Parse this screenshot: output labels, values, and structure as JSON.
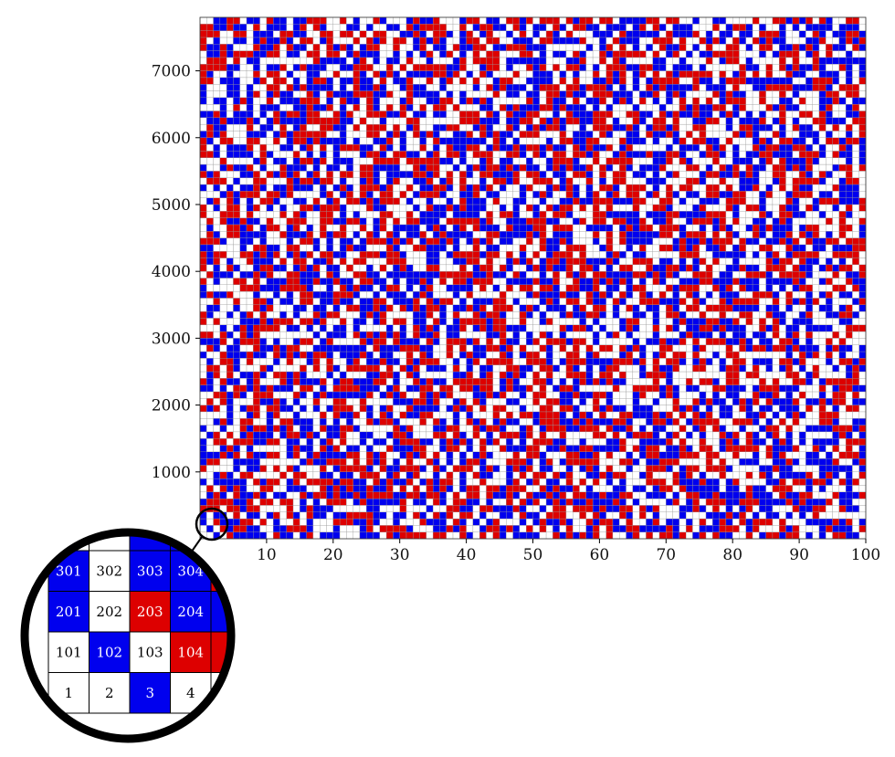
{
  "chart_data": {
    "type": "heatmap",
    "title": "",
    "xlabel": "",
    "ylabel": "",
    "columns": 100,
    "rows": 78,
    "cell_value_step": 100,
    "xlim": [
      0,
      100
    ],
    "ylim": [
      0,
      7800
    ],
    "x_ticks": [
      10,
      20,
      30,
      40,
      50,
      60,
      70,
      80,
      90,
      100
    ],
    "x_tick_labels": [
      "10",
      "20",
      "30",
      "40",
      "50",
      "60",
      "70",
      "80",
      "90",
      "100"
    ],
    "y_ticks": [
      1000,
      2000,
      3000,
      4000,
      5000,
      6000,
      7000
    ],
    "y_tick_labels": [
      "1000",
      "2000",
      "3000",
      "4000",
      "5000",
      "6000",
      "7000"
    ],
    "categories": [
      "white",
      "blue",
      "red"
    ],
    "colors": {
      "white": "#ffffff",
      "blue": "#0000ee",
      "red": "#dd0000",
      "grid": "#999999"
    },
    "grid": true,
    "legend": "none",
    "inset": {
      "description_position": "bottom-left magnified view of corner cells",
      "rows": [
        {
          "cells": [
            {
              "label": "301",
              "color": "blue"
            },
            {
              "label": "302",
              "color": "white"
            },
            {
              "label": "303",
              "color": "blue"
            },
            {
              "label": "304",
              "color": "blue"
            }
          ]
        },
        {
          "cells": [
            {
              "label": "201",
              "color": "blue"
            },
            {
              "label": "202",
              "color": "white"
            },
            {
              "label": "203",
              "color": "red"
            },
            {
              "label": "204",
              "color": "blue"
            }
          ]
        },
        {
          "cells": [
            {
              "label": "101",
              "color": "white"
            },
            {
              "label": "102",
              "color": "blue"
            },
            {
              "label": "103",
              "color": "white"
            },
            {
              "label": "104",
              "color": "red"
            }
          ]
        },
        {
          "cells": [
            {
              "label": "1",
              "color": "white"
            },
            {
              "label": "2",
              "color": "white"
            },
            {
              "label": "3",
              "color": "blue"
            },
            {
              "label": "4",
              "color": "white"
            }
          ]
        }
      ]
    }
  }
}
